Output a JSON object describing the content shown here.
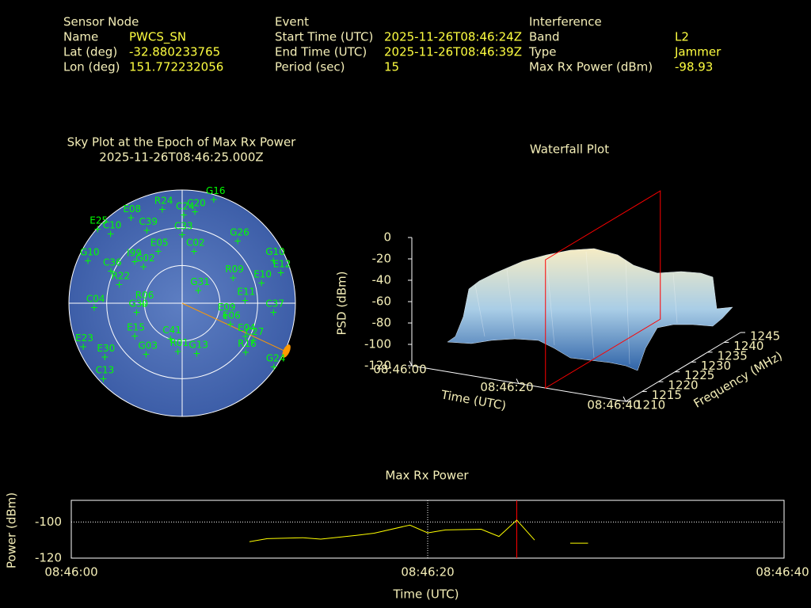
{
  "header": [
    {
      "title": "Sensor Node",
      "rows": [
        [
          "Name",
          "PWCS_SN"
        ],
        [
          "Lat (deg)",
          "-32.880233765"
        ],
        [
          "Lon (deg)",
          "151.772232056"
        ]
      ]
    },
    {
      "title": "Event",
      "rows": [
        [
          "Start Time (UTC)",
          "2025-11-26T08:46:24Z"
        ],
        [
          "End Time (UTC)",
          "2025-11-26T08:46:39Z"
        ],
        [
          "Period (sec)",
          "15"
        ]
      ]
    },
    {
      "title": "Interference",
      "rows": [
        [
          "Band",
          "L2"
        ],
        [
          "Type",
          "Jammer"
        ],
        [
          "Max Rx Power (dBm)",
          "-98.93"
        ]
      ]
    }
  ],
  "chart_data": [
    {
      "type": "polar",
      "title": "Sky Plot at the Epoch of Max Rx Power",
      "subtitle": "2025-11-26T08:46:25.000Z",
      "color": "#00ff00",
      "interference_azimuth": 115,
      "interference_color": "#ff9900",
      "satellites": [
        {
          "name": "G16",
          "az": 17,
          "el": 4
        },
        {
          "name": "C20",
          "az": 8,
          "el": 17
        },
        {
          "name": "R24",
          "az": 348,
          "el": 14
        },
        {
          "name": "C24",
          "az": 1,
          "el": 20
        },
        {
          "name": "E25",
          "az": 311,
          "el": 1
        },
        {
          "name": "C10",
          "az": 314,
          "el": 11
        },
        {
          "name": "E08",
          "az": 329,
          "el": 11
        },
        {
          "name": "C39",
          "az": 334,
          "el": 26
        },
        {
          "name": "C33",
          "az": 0,
          "el": 36
        },
        {
          "name": "G26",
          "az": 42,
          "el": 24
        },
        {
          "name": "E05",
          "az": 335,
          "el": 45
        },
        {
          "name": "C02",
          "az": 13,
          "el": 48
        },
        {
          "name": "I99",
          "az": 311,
          "el": 40
        },
        {
          "name": "G02",
          "az": 313,
          "el": 48
        },
        {
          "name": "C36",
          "az": 294,
          "el": 28
        },
        {
          "name": "G10",
          "az": 294,
          "el": 8
        },
        {
          "name": "G10",
          "az": 65,
          "el": 10
        },
        {
          "name": "E12",
          "az": 73,
          "el": 8
        },
        {
          "name": "R09",
          "az": 64,
          "el": 45
        },
        {
          "name": "R22",
          "az": 286,
          "el": 38
        },
        {
          "name": "G31",
          "az": 53,
          "el": 74
        },
        {
          "name": "E11",
          "az": 88,
          "el": 40
        },
        {
          "name": "C37",
          "az": 96,
          "el": 17
        },
        {
          "name": "E10",
          "az": 76,
          "el": 25
        },
        {
          "name": "R06",
          "az": 268,
          "el": 59
        },
        {
          "name": "G30",
          "az": 258,
          "el": 53
        },
        {
          "name": "C04",
          "az": 267,
          "el": 20
        },
        {
          "name": "E09",
          "az": 107,
          "el": 54
        },
        {
          "name": "E06",
          "az": 114,
          "el": 48
        },
        {
          "name": "E04",
          "az": 118,
          "el": 33
        },
        {
          "name": "C27",
          "az": 118,
          "el": 26
        },
        {
          "name": "R16",
          "az": 128,
          "el": 26
        },
        {
          "name": "G24",
          "az": 125,
          "el": 1
        },
        {
          "name": "E15",
          "az": 235,
          "el": 44
        },
        {
          "name": "C41",
          "az": 198,
          "el": 60
        },
        {
          "name": "R01",
          "az": 185,
          "el": 51
        },
        {
          "name": "G13",
          "az": 164,
          "el": 48
        },
        {
          "name": "G03",
          "az": 215,
          "el": 40
        },
        {
          "name": "E23",
          "az": 246,
          "el": 4
        },
        {
          "name": "E30",
          "az": 235,
          "el": 15
        },
        {
          "name": "C13",
          "az": 226,
          "el": 3
        }
      ]
    },
    {
      "type": "surface3d",
      "title": "Waterfall Plot",
      "x_label": "Time (UTC)",
      "y_label": "Frequency (MHz)",
      "z_label": "PSD (dBm)",
      "xlim": [
        "08:46:00",
        "08:46:40"
      ],
      "xticks": [
        "08:46:00",
        "08:46:20",
        "08:46:40"
      ],
      "ylim": [
        1210,
        1245
      ],
      "yticks": [
        1210,
        1215,
        1220,
        1225,
        1230,
        1235,
        1240,
        1245
      ],
      "zlim": [
        -120,
        0
      ],
      "zticks": [
        -120,
        -100,
        -80,
        -60,
        -40,
        -20,
        0
      ],
      "marker_x": "08:46:25",
      "marker_color": "#ff0000"
    },
    {
      "type": "line",
      "title": "Max Rx Power",
      "x_label": "Time (UTC)",
      "y_label": "Power (dBm)",
      "x": [
        "08:46:10",
        "08:46:11",
        "08:46:13",
        "08:46:14",
        "08:46:16",
        "08:46:17",
        "08:46:19",
        "08:46:20",
        "08:46:21",
        "08:46:23",
        "08:46:24",
        "08:46:25",
        "08:46:26",
        "08:46:27",
        "08:46:28",
        "08:46:29"
      ],
      "values": [
        -110.9,
        -109.2,
        -108.7,
        -109.5,
        -107.4,
        -106.2,
        -101.7,
        -106,
        -104.4,
        -104,
        -108,
        -98.93,
        -110,
        null,
        -111.7,
        -111.7
      ],
      "color": "#ffff00",
      "xlim": [
        "08:46:00",
        "08:46:40"
      ],
      "xticks": [
        "08:46:00",
        "08:46:20",
        "08:46:40"
      ],
      "ylim": [
        -120,
        -88
      ],
      "yticks": [
        -120,
        -100
      ],
      "grid": true,
      "marker_x": "08:46:25",
      "marker_color": "#ff0000"
    }
  ]
}
